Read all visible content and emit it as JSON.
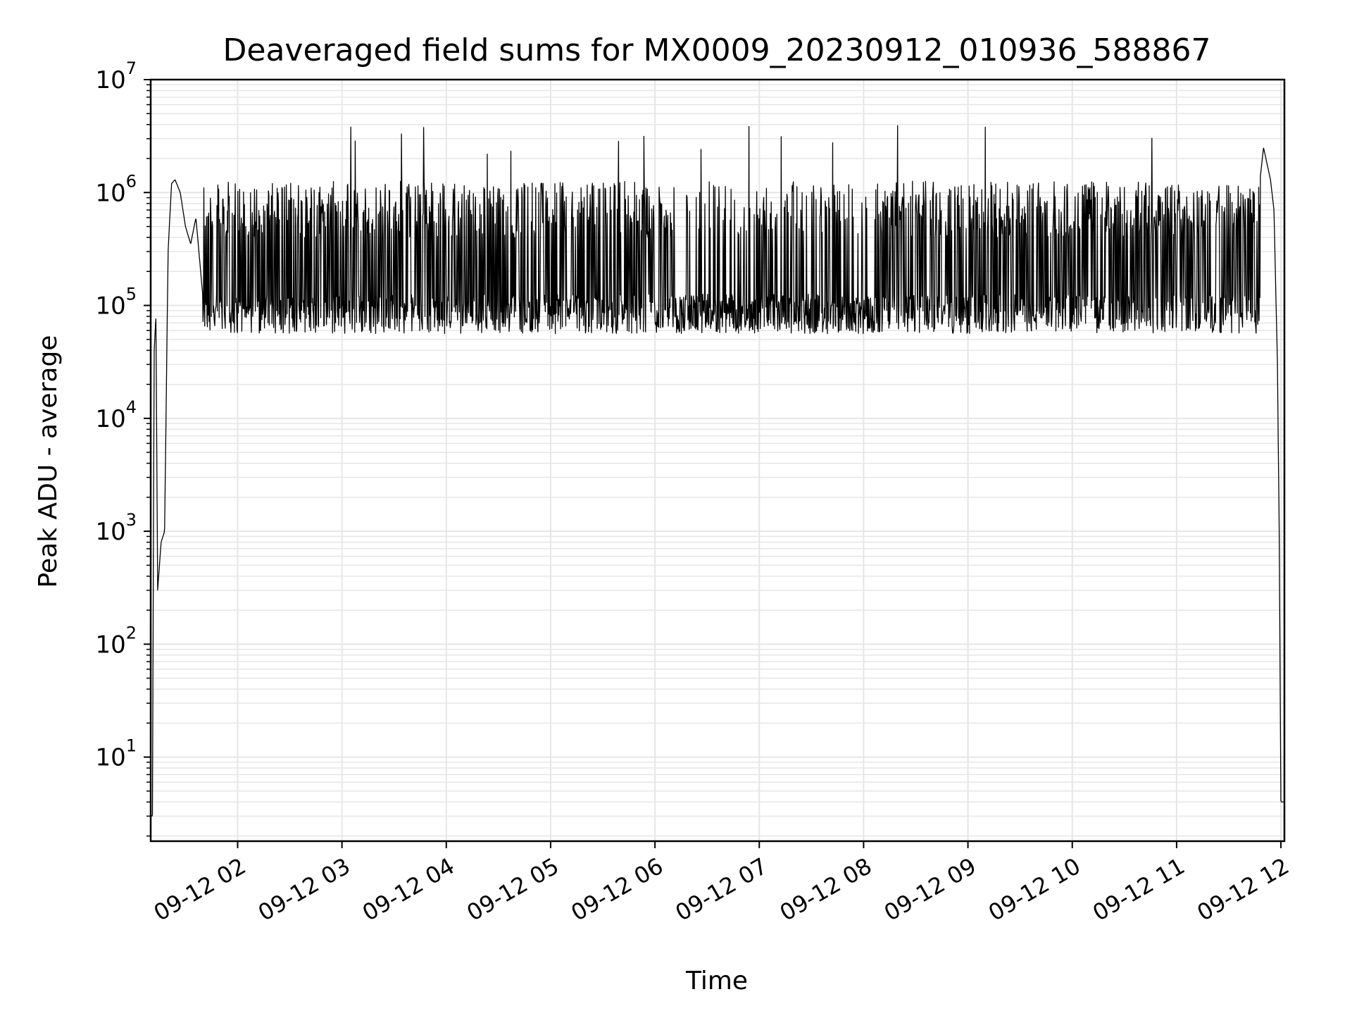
{
  "chart_data": {
    "type": "line",
    "title": "Deaveraged field sums for MX0009_20230912_010936_588867",
    "xlabel": "Time",
    "ylabel": "Peak ADU - average",
    "yscale": "log",
    "ylim": [
      1.8,
      10000000
    ],
    "xlim": [
      "2023-09-12 01:10",
      "2023-09-12 12:02"
    ],
    "grid": "major and minor",
    "colors": {
      "line": "#000000",
      "grid": "#e6e6e6",
      "axes": "#000000"
    },
    "x_ticks": [
      "09-12 02",
      "09-12 03",
      "09-12 04",
      "09-12 05",
      "09-12 06",
      "09-12 07",
      "09-12 08",
      "09-12 09",
      "09-12 10",
      "09-12 11",
      "09-12 12"
    ],
    "y_ticks": [
      {
        "base": "10",
        "exp": "1",
        "value": 10
      },
      {
        "base": "10",
        "exp": "2",
        "value": 100
      },
      {
        "base": "10",
        "exp": "3",
        "value": 1000
      },
      {
        "base": "10",
        "exp": "4",
        "value": 10000
      },
      {
        "base": "10",
        "exp": "5",
        "value": 100000
      },
      {
        "base": "10",
        "exp": "6",
        "value": 1000000
      },
      {
        "base": "10",
        "exp": "7",
        "value": 10000000
      }
    ],
    "series": [
      {
        "x": [
          "2023-09-12 01:10",
          "2023-09-12 01:11",
          "2023-09-12 01:12",
          "2023-09-12 01:13",
          "2023-09-12 01:14",
          "2023-09-12 01:16",
          "2023-09-12 01:18",
          "2023-09-12 01:20",
          "2023-09-12 01:22",
          "2023-09-12 01:24",
          "2023-09-12 01:27",
          "2023-09-12 01:30",
          "2023-09-12 01:33",
          "2023-09-12 01:36",
          "2023-09-12 01:40",
          "2023-09-12 01:45",
          "2023-09-12 01:50",
          "2023-09-12 02:00",
          "2023-09-12 02:30",
          "2023-09-12 02:50",
          "2023-09-12 03:30",
          "2023-09-12 04:00",
          "2023-09-12 05:00",
          "2023-09-12 06:00",
          "2023-09-12 06:30",
          "2023-09-12 07:00",
          "2023-09-12 08:00",
          "2023-09-12 09:00",
          "2023-09-12 10:00",
          "2023-09-12 11:00",
          "2023-09-12 11:30",
          "2023-09-12 11:45",
          "2023-09-12 11:50",
          "2023-09-12 11:54",
          "2023-09-12 11:56",
          "2023-09-12 11:58",
          "2023-09-12 11:59",
          "2023-09-12 12:00",
          "2023-09-12 12:01",
          "2023-09-12 12:02"
        ],
        "values": [
          3,
          3,
          40000,
          80000,
          300,
          800,
          1000,
          300000,
          1200000,
          1300000,
          1000000,
          500000,
          350000,
          600000,
          120000,
          80000,
          70000,
          300000,
          400000,
          5800000,
          700000,
          500000,
          300000,
          150000,
          90000,
          80000,
          100000,
          300000,
          300000,
          350000,
          400000,
          500000,
          2500000,
          1300000,
          700000,
          30000,
          1000,
          4,
          4,
          4
        ]
      }
    ]
  }
}
